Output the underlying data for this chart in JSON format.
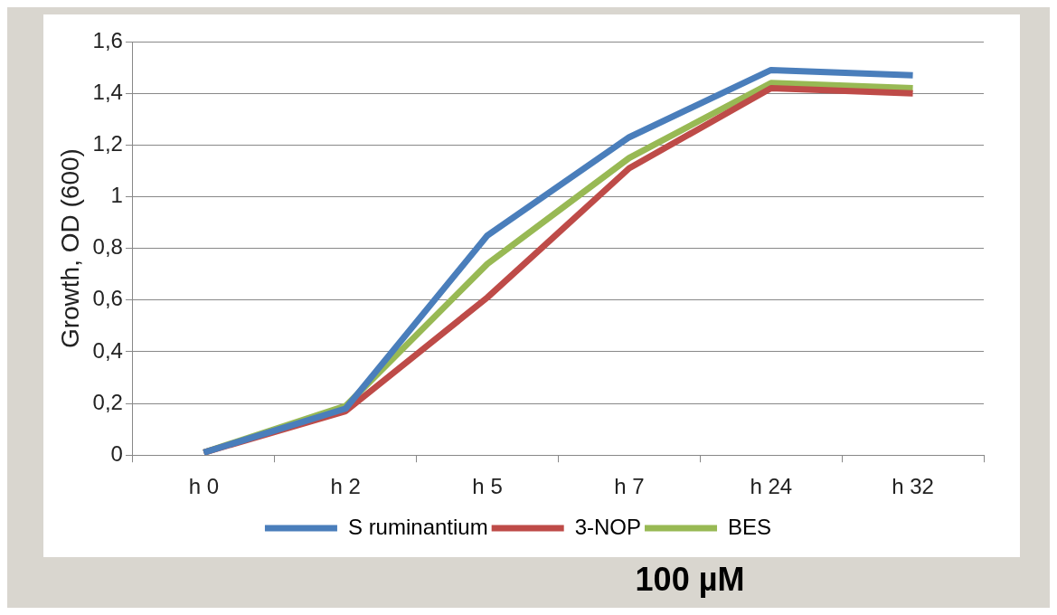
{
  "chart_data": {
    "type": "line",
    "ylabel": "Growth, OD (600)",
    "categories": [
      "h 0",
      "h 2",
      "h 5",
      "h 7",
      "h 24",
      "h 32"
    ],
    "series": [
      {
        "name": "S ruminantium",
        "color": "#4a7ebb",
        "values": [
          0.01,
          0.18,
          0.85,
          1.23,
          1.49,
          1.47
        ]
      },
      {
        "name": "3-NOP",
        "color": "#be4b48",
        "values": [
          0.01,
          0.17,
          0.61,
          1.11,
          1.42,
          1.4
        ]
      },
      {
        "name": "BES",
        "color": "#98b954",
        "values": [
          0.01,
          0.19,
          0.74,
          1.15,
          1.44,
          1.42
        ]
      }
    ],
    "ylim": [
      0,
      1.6
    ],
    "yticks": [
      0,
      {
        "value": 0.2,
        "label": "0,2"
      },
      {
        "value": 0.4,
        "label": "0,4"
      },
      {
        "value": 0.6,
        "label": "0,6"
      },
      {
        "value": 0.8,
        "label": "0,8"
      },
      1,
      {
        "value": 1.2,
        "label": "1,2"
      },
      {
        "value": 1.4,
        "label": "1,4"
      },
      {
        "value": 1.6,
        "label": "1,6"
      }
    ],
    "grid": "y",
    "legend": "bottom",
    "marker": "none",
    "line_style": "solid",
    "annotations": [
      "100 µM"
    ]
  }
}
